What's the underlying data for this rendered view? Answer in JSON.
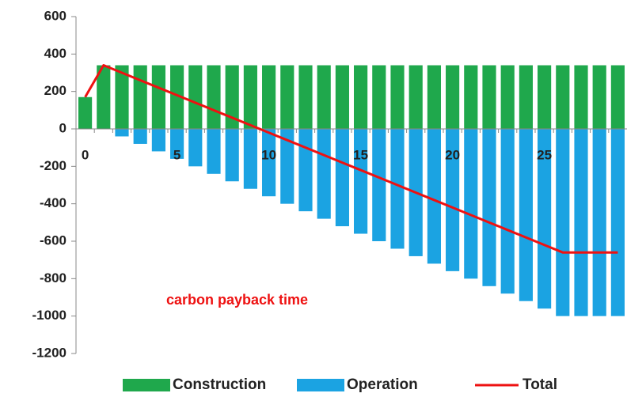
{
  "chart_data": {
    "type": "bar",
    "x": [
      0,
      1,
      2,
      3,
      4,
      5,
      6,
      7,
      8,
      9,
      10,
      11,
      12,
      13,
      14,
      15,
      16,
      17,
      18,
      19,
      20,
      21,
      22,
      23,
      24,
      25,
      26,
      27,
      28,
      29
    ],
    "xlim": [
      -0.5,
      29.5
    ],
    "xticks": [
      0,
      5,
      10,
      15,
      20,
      25
    ],
    "ylim": [
      -1200,
      600
    ],
    "yticks": [
      -1200,
      -1000,
      -800,
      -600,
      -400,
      -200,
      0,
      200,
      400,
      600
    ],
    "grid": false,
    "legend": "bottom",
    "annotation": "carbon payback time",
    "series": [
      {
        "name": "Construction",
        "color": "#1fa84c",
        "values": [
          170,
          340,
          340,
          340,
          340,
          340,
          340,
          340,
          340,
          340,
          340,
          340,
          340,
          340,
          340,
          340,
          340,
          340,
          340,
          340,
          340,
          340,
          340,
          340,
          340,
          340,
          340,
          340,
          340,
          340
        ]
      },
      {
        "name": "Operation",
        "color": "#1ba3e2",
        "values": [
          0,
          0,
          -40,
          -80,
          -120,
          -160,
          -200,
          -240,
          -280,
          -320,
          -360,
          -400,
          -440,
          -480,
          -520,
          -560,
          -600,
          -640,
          -680,
          -720,
          -760,
          -800,
          -840,
          -880,
          -920,
          -960,
          -1000,
          -1000,
          -1000,
          -1000
        ]
      },
      {
        "name": "Total",
        "color": "#ee1111",
        "type": "line",
        "values": [
          170,
          340,
          300,
          260,
          220,
          180,
          140,
          100,
          60,
          20,
          -20,
          -60,
          -100,
          -140,
          -180,
          -220,
          -260,
          -300,
          -340,
          -380,
          -420,
          -460,
          -500,
          -540,
          -580,
          -620,
          -660,
          -660,
          -660,
          -660
        ]
      }
    ]
  }
}
